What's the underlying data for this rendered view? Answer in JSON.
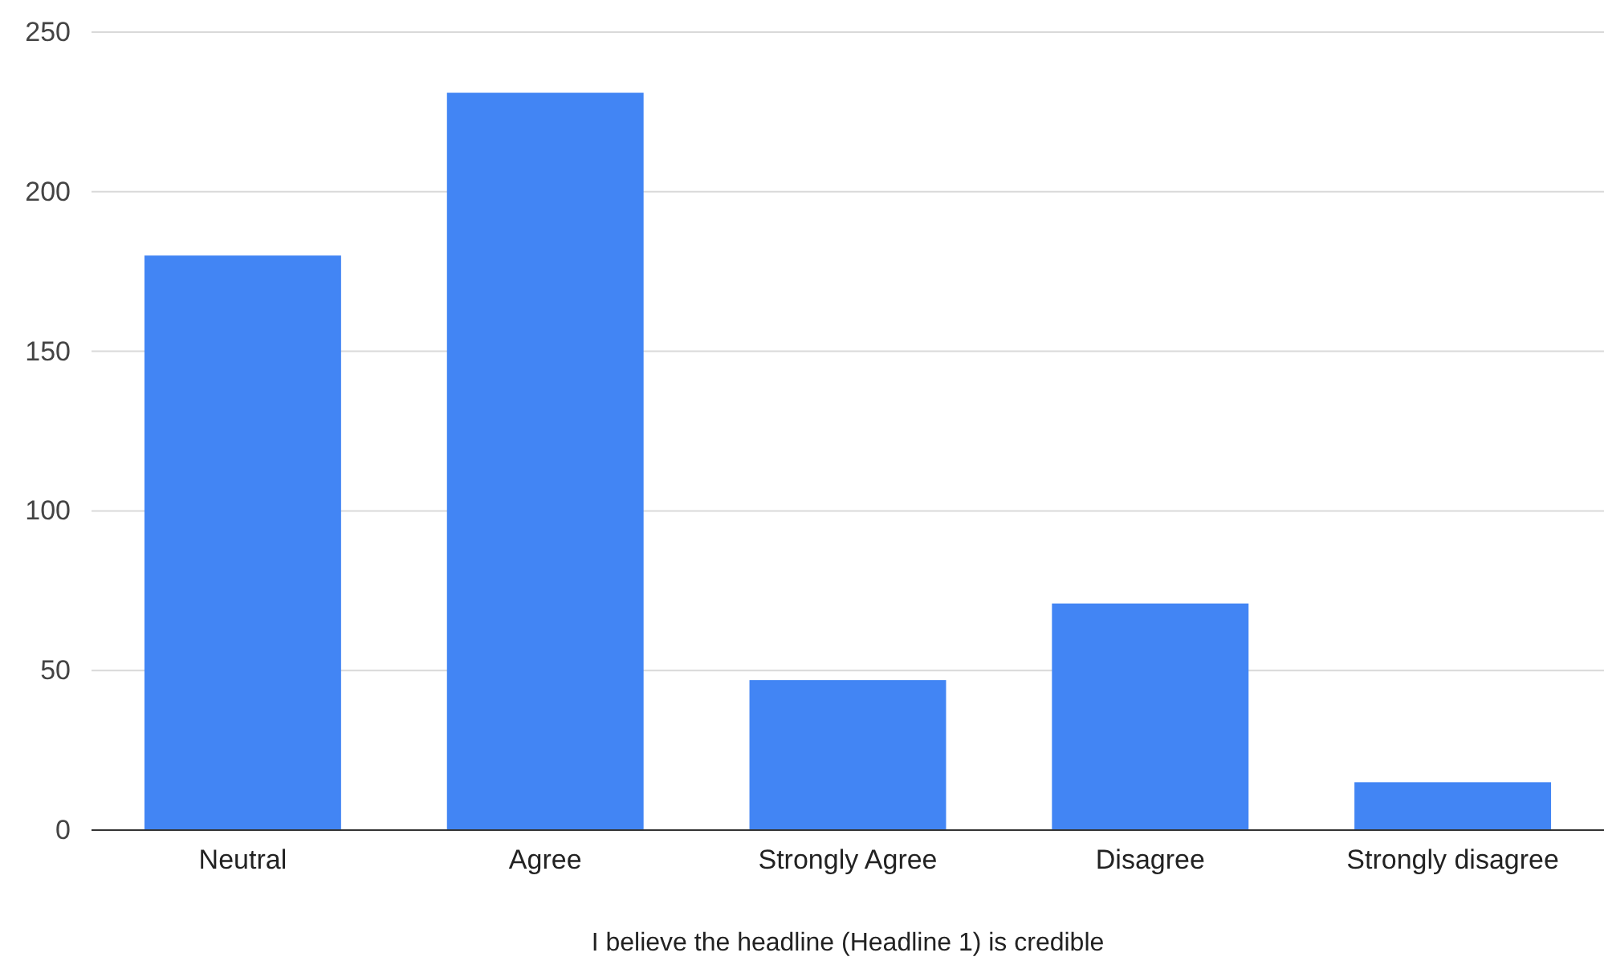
{
  "chart_data": {
    "type": "bar",
    "xlabel": "I believe the headline (Headline 1) is credible",
    "categories": [
      "Neutral",
      "Agree",
      "Strongly Agree",
      "Disagree",
      "Strongly disagree"
    ],
    "values": [
      180,
      231,
      47,
      71,
      15
    ],
    "color": "#4285f4",
    "ylim": [
      0,
      250
    ],
    "yticks": [
      0,
      50,
      100,
      150,
      200,
      250
    ],
    "grid": "y"
  }
}
